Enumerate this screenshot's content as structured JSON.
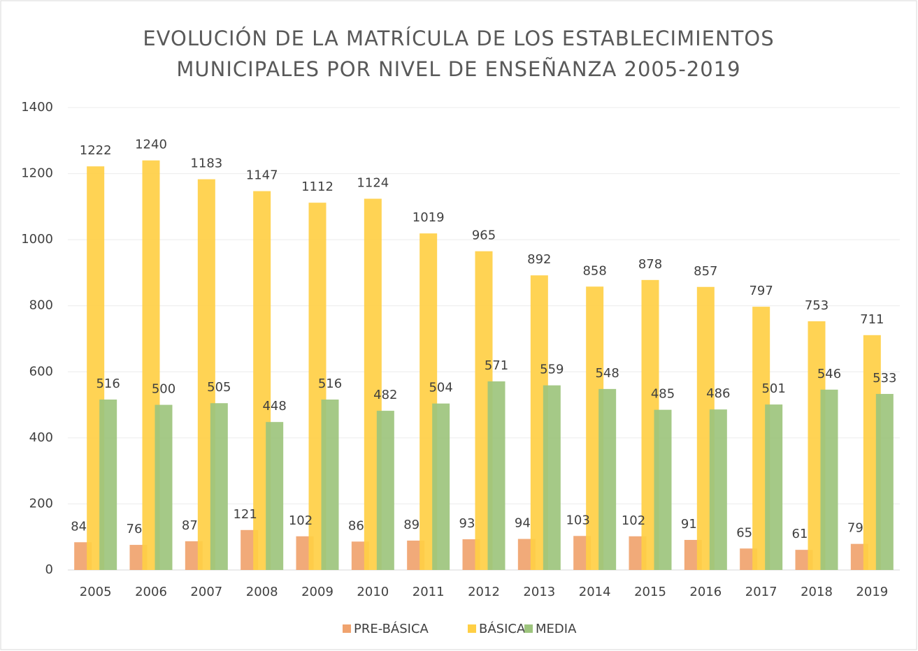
{
  "chart_data": {
    "type": "bar",
    "title": [
      "EVOLUCIÓN DE LA MATRÍCULA DE LOS ESTABLECIMIENTOS",
      "MUNICIPALES POR NIVEL DE ENSEÑANZA 2005-2019"
    ],
    "categories": [
      "2005",
      "2006",
      "2007",
      "2008",
      "2009",
      "2010",
      "2011",
      "2012",
      "2013",
      "2014",
      "2015",
      "2016",
      "2017",
      "2018",
      "2019"
    ],
    "series": [
      {
        "name": "PRE-BÁSICA",
        "color": "#f0a36e",
        "values": [
          84,
          76,
          87,
          121,
          102,
          86,
          89,
          93,
          94,
          103,
          102,
          91,
          65,
          61,
          79
        ]
      },
      {
        "name": "BÁSICA",
        "color": "#ffcf45",
        "values": [
          1222,
          1240,
          1183,
          1147,
          1112,
          1124,
          1019,
          965,
          892,
          858,
          878,
          857,
          797,
          753,
          711
        ]
      },
      {
        "name": "MEDIA",
        "color": "#9dc47d",
        "values": [
          516,
          500,
          505,
          448,
          516,
          482,
          504,
          571,
          559,
          548,
          485,
          486,
          501,
          546,
          533
        ]
      }
    ],
    "ylim": [
      0,
      1400
    ],
    "yticks": [
      0,
      200,
      400,
      600,
      800,
      1000,
      1200,
      1400
    ],
    "grid": true,
    "legend": "bottom"
  }
}
